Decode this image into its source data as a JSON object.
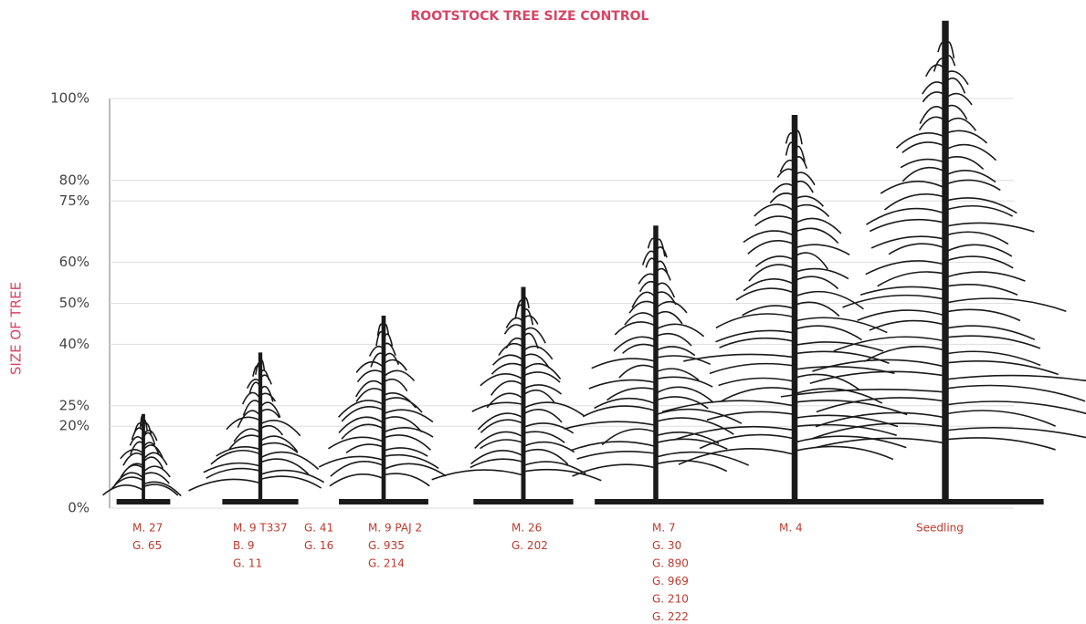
{
  "chart_data": {
    "type": "tree",
    "title": "ROOTSTOCK TREE SIZE CONTROL",
    "y_label": "SIZE OF TREE",
    "categories": [
      [
        [
          "M. 27",
          "G. 65"
        ]
      ],
      [
        [
          "M. 9 T337",
          "B. 9",
          "G. 11"
        ],
        [
          "G. 41",
          "G. 16"
        ]
      ],
      [
        [
          "M. 9 PAJ 2",
          "G. 935",
          "G. 214"
        ]
      ],
      [
        [
          "M. 26",
          "G. 202"
        ]
      ],
      [
        [
          "M. 7",
          "G. 30",
          "G. 890",
          "G. 969",
          "G. 210",
          "G. 222"
        ]
      ],
      [
        [
          "M. 4"
        ]
      ],
      [
        [
          "Seedling"
        ]
      ]
    ],
    "values": [
      23,
      38,
      47,
      54,
      69,
      96,
      119
    ],
    "ylim": [
      0,
      100
    ],
    "yticks": [
      {
        "value": 0,
        "label": "0%"
      },
      {
        "value": 20,
        "label": "20%"
      },
      {
        "value": 25,
        "label": "25%"
      },
      {
        "value": 40,
        "label": "40%"
      },
      {
        "value": 50,
        "label": "50%"
      },
      {
        "value": 60,
        "label": "60%"
      },
      {
        "value": 75,
        "label": "75%"
      },
      {
        "value": 80,
        "label": "80%"
      },
      {
        "value": 100,
        "label": "100%"
      }
    ],
    "grid": true,
    "color": "#1a1a1a",
    "label_color": "#c0392b",
    "title_color": "#d64564"
  }
}
